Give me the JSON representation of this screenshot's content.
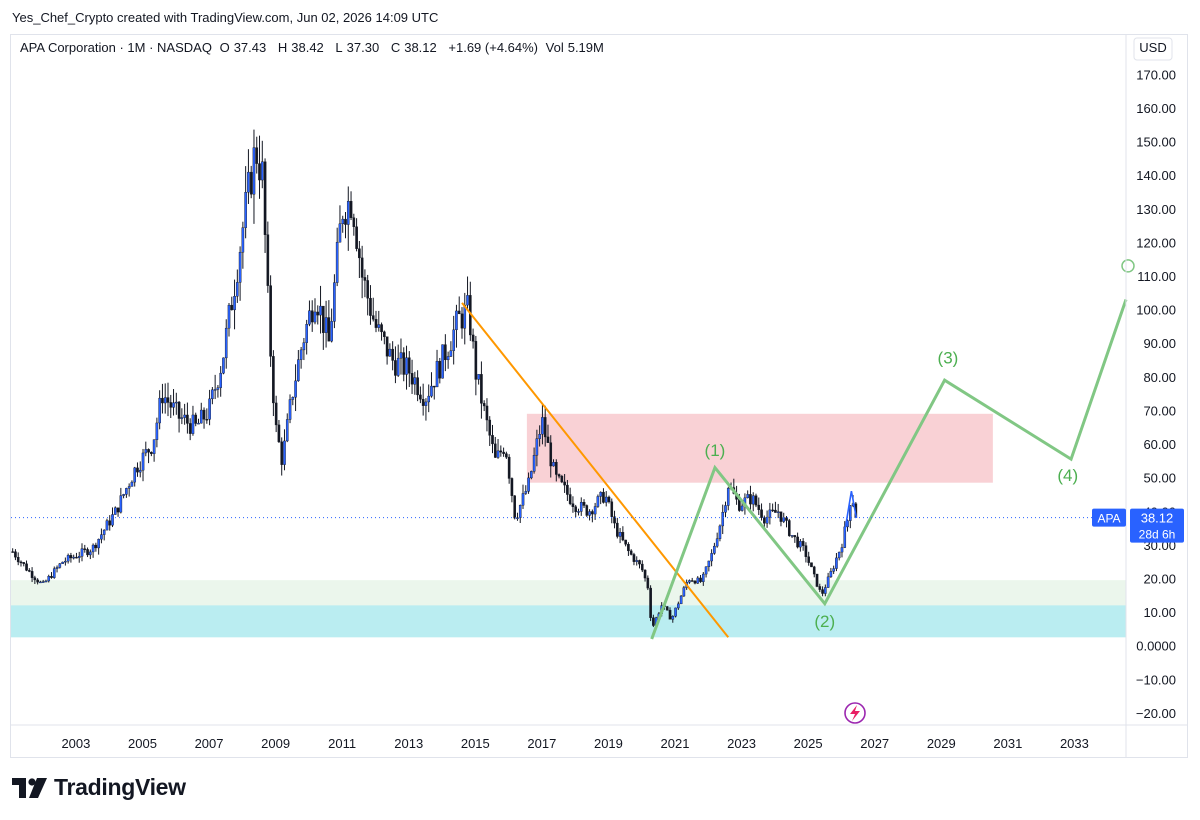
{
  "credit": "Yes_Chef_Crypto created with TradingView.com, Jun 02, 2026 14:09 UTC",
  "legend": {
    "symbol": "APA Corporation · 1M · NASDAQ",
    "open_label": "O",
    "open": "37.43",
    "high_label": "H",
    "high": "38.42",
    "low_label": "L",
    "low": "37.30",
    "close_label": "C",
    "close": "38.12",
    "change": "+1.69 (+4.64%)",
    "vol_label": "Vol",
    "vol": "5.19M"
  },
  "currency": "USD",
  "price_tag": {
    "ticker": "APA",
    "price": "38.12",
    "countdown": "28d 6h",
    "color": "#2962ff"
  },
  "brand": "TradingView",
  "colors": {
    "up": "#2962ff",
    "down": "#131722",
    "wave": "#81c784",
    "trend": "#ff9800",
    "zone_red": "#f8c9ce",
    "zone_green": "#e8f5e9",
    "zone_teal": "#b2ebf2"
  },
  "chart_data": {
    "type": "candlestick",
    "yticks": [
      "170.00",
      "160.00",
      "150.00",
      "140.00",
      "130.00",
      "120.00",
      "110.00",
      "100.00",
      "90.00",
      "80.00",
      "70.00",
      "60.00",
      "50.00",
      "40.00",
      "30.00",
      "20.00",
      "10.00",
      "0.0000",
      "−10.00",
      "−20.00"
    ],
    "ytick_values": [
      170,
      160,
      150,
      140,
      130,
      120,
      110,
      100,
      90,
      80,
      70,
      60,
      50,
      40,
      30,
      20,
      10,
      0,
      -10,
      -20
    ],
    "xticks": [
      "2003",
      "2005",
      "2007",
      "2009",
      "2011",
      "2013",
      "2015",
      "2017",
      "2019",
      "2021",
      "2023",
      "2025",
      "2027",
      "2029",
      "2031",
      "2033"
    ],
    "xtick_values": [
      2003,
      2005,
      2007,
      2009,
      2011,
      2013,
      2015,
      2017,
      2019,
      2021,
      2023,
      2025,
      2027,
      2029,
      2031,
      2033
    ],
    "x_range": [
      2001.05,
      2034.55
    ],
    "y_range": [
      -23,
      182
    ],
    "price_path": [
      [
        2001.1,
        28
      ],
      [
        2001.6,
        22
      ],
      [
        2002.0,
        18
      ],
      [
        2002.6,
        25
      ],
      [
        2003.5,
        29
      ],
      [
        2004.2,
        40
      ],
      [
        2004.8,
        53
      ],
      [
        2005.3,
        60
      ],
      [
        2005.6,
        75
      ],
      [
        2006.1,
        68
      ],
      [
        2006.6,
        65
      ],
      [
        2007.0,
        70
      ],
      [
        2007.4,
        85
      ],
      [
        2007.8,
        110
      ],
      [
        2008.1,
        130
      ],
      [
        2008.4,
        148
      ],
      [
        2008.6,
        140
      ],
      [
        2008.8,
        95
      ],
      [
        2009.0,
        65
      ],
      [
        2009.2,
        55
      ],
      [
        2009.5,
        75
      ],
      [
        2009.8,
        90
      ],
      [
        2010.2,
        105
      ],
      [
        2010.6,
        90
      ],
      [
        2011.0,
        130
      ],
      [
        2011.3,
        133
      ],
      [
        2011.6,
        110
      ],
      [
        2012.0,
        95
      ],
      [
        2012.5,
        85
      ],
      [
        2013.0,
        82
      ],
      [
        2013.5,
        74
      ],
      [
        2014.0,
        85
      ],
      [
        2014.5,
        97
      ],
      [
        2014.8,
        100
      ],
      [
        2015.0,
        82
      ],
      [
        2015.3,
        68
      ],
      [
        2015.6,
        55
      ],
      [
        2015.9,
        60
      ],
      [
        2016.2,
        38
      ],
      [
        2016.6,
        48
      ],
      [
        2017.0,
        67
      ],
      [
        2017.4,
        50
      ],
      [
        2018.0,
        42
      ],
      [
        2018.4,
        40
      ],
      [
        2018.9,
        45
      ],
      [
        2019.2,
        35
      ],
      [
        2019.6,
        28
      ],
      [
        2020.0,
        23
      ],
      [
        2020.2,
        17
      ],
      [
        2020.3,
        5
      ],
      [
        2020.6,
        12
      ],
      [
        2020.9,
        8
      ],
      [
        2021.4,
        20
      ],
      [
        2021.8,
        19
      ],
      [
        2022.1,
        27
      ],
      [
        2022.4,
        38
      ],
      [
        2022.6,
        48
      ],
      [
        2022.9,
        42
      ],
      [
        2023.3,
        44
      ],
      [
        2023.7,
        38
      ],
      [
        2024.1,
        40
      ],
      [
        2024.5,
        33
      ],
      [
        2024.9,
        28
      ],
      [
        2025.2,
        20
      ],
      [
        2025.4,
        15
      ],
      [
        2025.7,
        22
      ],
      [
        2026.0,
        30
      ],
      [
        2026.2,
        38
      ],
      [
        2026.3,
        46
      ],
      [
        2026.45,
        38
      ]
    ],
    "last_close": 38.12,
    "zones": [
      {
        "name": "resistance-zone",
        "x": [
          2016.55,
          2030.55
        ],
        "y": [
          48.5,
          69
        ]
      },
      {
        "name": "support-zone-outer",
        "x": [
          2001.05,
          2034.55
        ],
        "y": [
          2.5,
          19.5
        ]
      },
      {
        "name": "support-zone-inner",
        "x": [
          2001.05,
          2034.55
        ],
        "y": [
          2.5,
          12
        ]
      }
    ],
    "trendline": [
      [
        2014.6,
        102
      ],
      [
        2022.6,
        2.5
      ]
    ],
    "wave_path": [
      [
        2020.3,
        2
      ],
      [
        2022.2,
        53
      ],
      [
        2025.5,
        12.5
      ],
      [
        2029.1,
        79
      ],
      [
        2032.9,
        55.5
      ],
      [
        2034.55,
        103
      ]
    ],
    "wave_labels": [
      {
        "label": "(1)",
        "x": 2022.2,
        "y": 56.5
      },
      {
        "label": "(2)",
        "x": 2025.5,
        "y": 5.5
      },
      {
        "label": "(3)",
        "x": 2029.2,
        "y": 84
      },
      {
        "label": "(4)",
        "x": 2032.8,
        "y": 49
      }
    ],
    "bright_segment": [
      [
        2026.1,
        34
      ],
      [
        2026.3,
        46
      ],
      [
        2026.45,
        38
      ]
    ]
  }
}
